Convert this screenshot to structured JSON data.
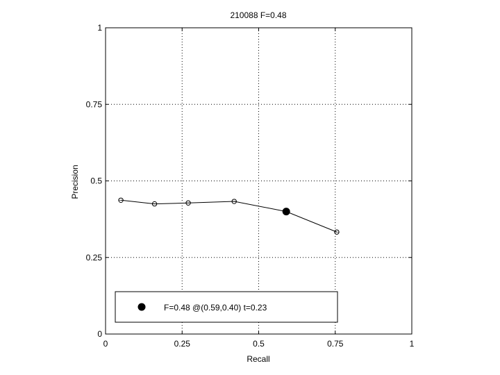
{
  "chart_data": {
    "type": "line",
    "title": "210088 F=0.48",
    "xlabel": "Recall",
    "ylabel": "Precision",
    "xlim": [
      0,
      1
    ],
    "ylim": [
      0,
      1
    ],
    "xticks": [
      0,
      0.25,
      0.5,
      0.75,
      1
    ],
    "yticks": [
      0,
      0.25,
      0.5,
      0.75,
      1
    ],
    "xtick_labels": [
      "0",
      "0.25",
      "0.5",
      "0.75",
      "1"
    ],
    "ytick_labels": [
      "0",
      "0.25",
      "0.5",
      "0.75",
      "1"
    ],
    "grid": true,
    "legend_position": "bottom-left",
    "series": [
      {
        "x": [
          0.05,
          0.16,
          0.27,
          0.42,
          0.59,
          0.755
        ],
        "y": [
          0.437,
          0.425,
          0.428,
          0.433,
          0.4,
          0.333
        ],
        "marker": "open-circle",
        "color": "#000000"
      }
    ],
    "highlight_point": {
      "x": 0.59,
      "y": 0.4,
      "marker": "filled-circle",
      "color": "#000000",
      "legend_label": "F=0.48 @(0.59,0.40) t=0.23"
    }
  }
}
